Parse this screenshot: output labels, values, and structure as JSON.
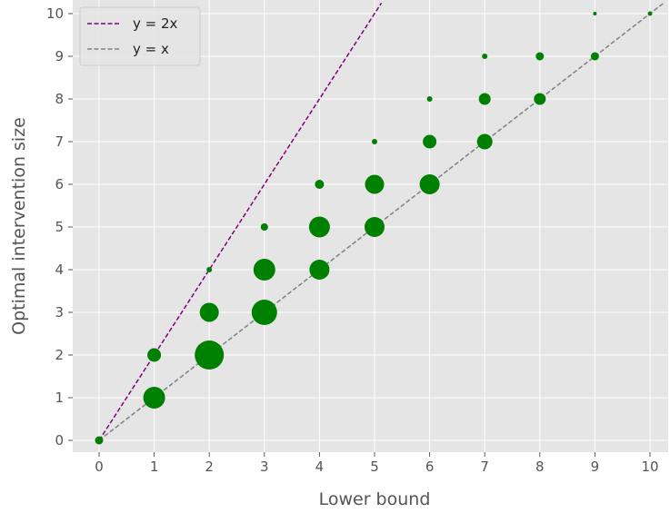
{
  "chart_data": {
    "type": "scatter",
    "title": "",
    "xlabel": "Lower bound",
    "ylabel": "Optimal intervention size",
    "xlim": [
      -0.5,
      10.5
    ],
    "ylim": [
      -0.3,
      10.25
    ],
    "xticks": [
      0,
      1,
      2,
      3,
      4,
      5,
      6,
      7,
      8,
      9,
      10
    ],
    "yticks": [
      0,
      1,
      2,
      3,
      4,
      5,
      6,
      7,
      8,
      9,
      10
    ],
    "grid": true,
    "legend": "top-left",
    "colors": {
      "background": "#e5e5e5",
      "grid": "#ffffff",
      "points": "#008000",
      "line_2x": "#800080",
      "line_x": "#808080"
    },
    "lines": [
      {
        "name": "y = 2x",
        "slope": 2,
        "style": "dashed",
        "color": "#800080"
      },
      {
        "name": "y = x",
        "slope": 1,
        "style": "dashed",
        "color": "#808080"
      }
    ],
    "points": [
      {
        "x": 0,
        "y": 0,
        "r": 4.5
      },
      {
        "x": 1,
        "y": 1,
        "r": 12
      },
      {
        "x": 1,
        "y": 2,
        "r": 7.5
      },
      {
        "x": 2,
        "y": 2,
        "r": 16
      },
      {
        "x": 2,
        "y": 3,
        "r": 10.5
      },
      {
        "x": 2,
        "y": 4,
        "r": 3
      },
      {
        "x": 3,
        "y": 3,
        "r": 14
      },
      {
        "x": 3,
        "y": 4,
        "r": 12
      },
      {
        "x": 3,
        "y": 5,
        "r": 4
      },
      {
        "x": 4,
        "y": 4,
        "r": 11
      },
      {
        "x": 4,
        "y": 5,
        "r": 11.5
      },
      {
        "x": 4,
        "y": 6,
        "r": 5
      },
      {
        "x": 5,
        "y": 5,
        "r": 11
      },
      {
        "x": 5,
        "y": 6,
        "r": 10.5
      },
      {
        "x": 5,
        "y": 7,
        "r": 3
      },
      {
        "x": 6,
        "y": 6,
        "r": 11
      },
      {
        "x": 6,
        "y": 7,
        "r": 7.5
      },
      {
        "x": 6,
        "y": 8,
        "r": 3
      },
      {
        "x": 7,
        "y": 7,
        "r": 8.5
      },
      {
        "x": 7,
        "y": 8,
        "r": 6.5
      },
      {
        "x": 7,
        "y": 9,
        "r": 3
      },
      {
        "x": 8,
        "y": 8,
        "r": 6.5
      },
      {
        "x": 8,
        "y": 9,
        "r": 4.5
      },
      {
        "x": 9,
        "y": 9,
        "r": 4.5
      },
      {
        "x": 9,
        "y": 10,
        "r": 2
      },
      {
        "x": 10,
        "y": 10,
        "r": 2.5
      }
    ]
  }
}
